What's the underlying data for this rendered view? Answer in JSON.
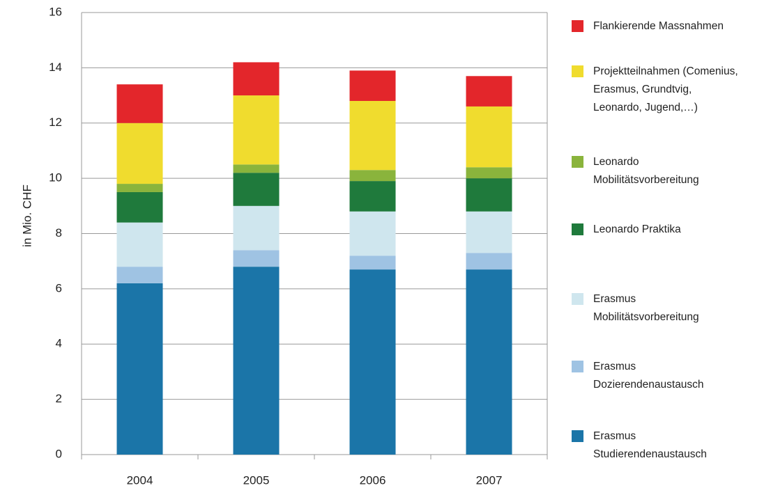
{
  "chart_data": {
    "type": "stacked_bar",
    "y_label": "in Mio. CHF",
    "categories": [
      "2004",
      "2005",
      "2006",
      "2007"
    ],
    "ylim": [
      0,
      16
    ],
    "yticks": [
      0,
      2,
      4,
      6,
      8,
      10,
      12,
      14,
      16
    ],
    "grid": true,
    "series": [
      {
        "name": "Erasmus Studierendenaustausch",
        "color": "#1b75a8",
        "values": [
          6.2,
          6.8,
          6.7,
          6.7
        ]
      },
      {
        "name": "Erasmus Dozierendenaustausch",
        "color": "#9fc3e3",
        "values": [
          0.6,
          0.6,
          0.5,
          0.6
        ]
      },
      {
        "name": "Erasmus Mobilitätsvorbereitung",
        "color": "#cfe6ee",
        "values": [
          1.6,
          1.6,
          1.6,
          1.5
        ]
      },
      {
        "name": "Leonardo Praktika",
        "color": "#1f7a3c",
        "values": [
          1.1,
          1.2,
          1.1,
          1.2
        ]
      },
      {
        "name": "Leonardo Mobilitätsvorbereitung",
        "color": "#8ab43c",
        "values": [
          0.3,
          0.3,
          0.4,
          0.4
        ]
      },
      {
        "name": "Projektteilnahmen (Comenius, Erasmus, Grundtvig, Leonardo, Jugend,…)",
        "color": "#f0dc2e",
        "values": [
          2.2,
          2.5,
          2.5,
          2.2
        ]
      },
      {
        "name": "Flankierende Massnahmen",
        "color": "#e3262b",
        "values": [
          1.4,
          1.2,
          1.1,
          1.1
        ]
      }
    ]
  }
}
